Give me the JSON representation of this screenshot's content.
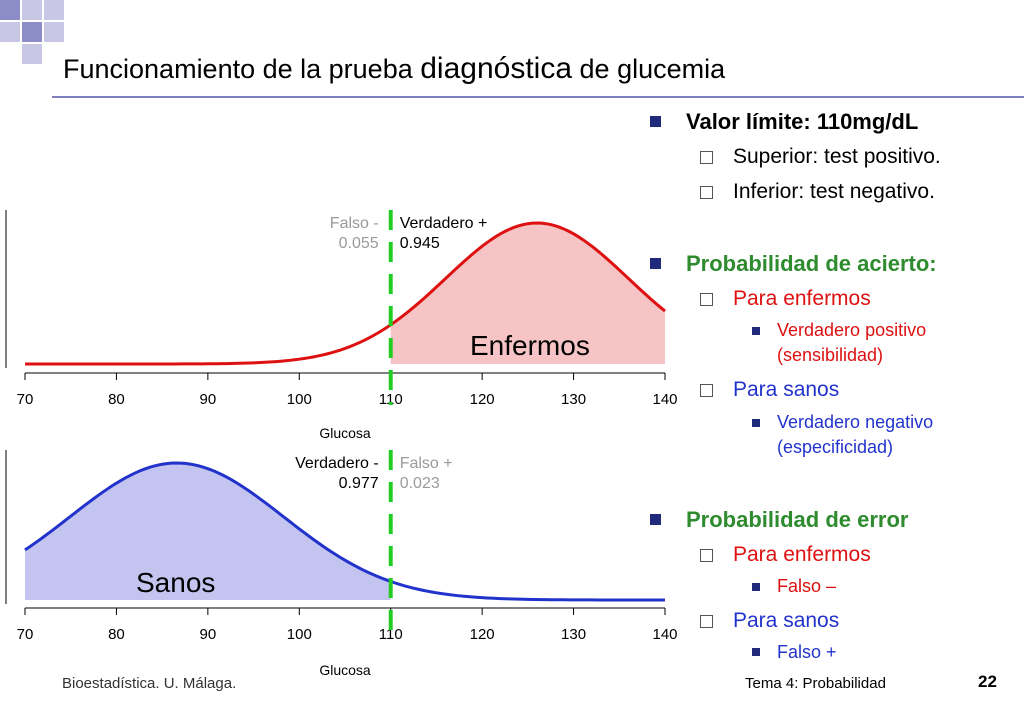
{
  "title": {
    "part1": "Funcionamiento de la prueba ",
    "part2": "diagnóstica",
    "part3": " de glucemia"
  },
  "colors": {
    "accent_blue": "#1f2a7a",
    "green_text": "#2e8b2e",
    "red_text": "#dd1111",
    "blue_text": "#2233cc",
    "decor_square_light": "#c8c8e6",
    "decor_square_dark": "#8c8cc8"
  },
  "bullets": {
    "threshold": "Valor límite: 110mg/dL",
    "upper": "Superior: test positivo.",
    "lower": "Inferior: test negativo.",
    "hit_prob": "Probabilidad de acierto:",
    "hit_sick": "Para enfermos",
    "true_pos": "Verdadero positivo",
    "sensitivity": "(sensibilidad)",
    "hit_healthy": "Para sanos",
    "true_neg": "Verdadero negativo",
    "specificity": "(especificidad)",
    "err_prob": "Probabilidad de error",
    "err_sick": "Para enfermos",
    "false_neg": "Falso –",
    "err_healthy": "Para sanos",
    "false_pos": "Falso +"
  },
  "footer": {
    "left": "Bioestadística. U. Málaga.",
    "right": "Tema 4: Probabilidad",
    "page": "22"
  },
  "chart_data": [
    {
      "type": "area",
      "region_label": "Enfermos",
      "xlabel": "Glucosa",
      "xlim": [
        70,
        140
      ],
      "xticks": [
        70,
        80,
        90,
        100,
        110,
        120,
        130,
        140
      ],
      "threshold": 110,
      "distribution": {
        "family": "normal",
        "mean": 126,
        "sd": 10
      },
      "shaded_side": "right",
      "curve_color": "#dd1111",
      "fill_color": "#f6c4c4",
      "annotations": [
        {
          "line1": "Falso -",
          "line2": "0.055",
          "side": "left",
          "muted": true
        },
        {
          "line1": "Verdadero +",
          "line2": "0.945",
          "side": "right",
          "muted": false
        }
      ]
    },
    {
      "type": "area",
      "region_label": "Sanos",
      "xlabel": "Glucosa",
      "xlim": [
        70,
        140
      ],
      "xticks": [
        70,
        80,
        90,
        100,
        110,
        120,
        130,
        140
      ],
      "threshold": 110,
      "distribution": {
        "family": "normal",
        "mean": 86.6,
        "sd": 11.7
      },
      "shaded_side": "left",
      "curve_color": "#2233cc",
      "fill_color": "#c4c4f0",
      "annotations": [
        {
          "line1": "Verdadero -",
          "line2": "0.977",
          "side": "left",
          "muted": false
        },
        {
          "line1": "Falso +",
          "line2": "0.023",
          "side": "right",
          "muted": true
        }
      ]
    }
  ]
}
